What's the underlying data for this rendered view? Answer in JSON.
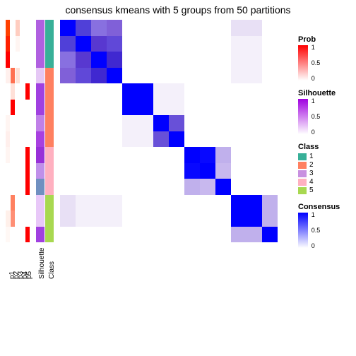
{
  "title": "consensus kmeans with 5 groups from 50 partitions",
  "rowH": 22.5,
  "ann_labels": [
    "p1",
    "p2",
    "p3",
    "p4",
    "p5",
    "Silhouette",
    "Class"
  ],
  "ann_cols": [
    {
      "w": 6,
      "colors": [
        "#ff4000",
        "#ff2000",
        "#ff0000",
        "#fff0ed",
        "#ffffff",
        "#ffffff",
        "#fff5f2",
        "#ffefec",
        "#fff5f2",
        "#ffffff",
        "#ffffff",
        "#ffffff",
        "#fff0ea",
        "#fff8f5"
      ]
    },
    {
      "w": 6,
      "colors": [
        "#ffffff",
        "#ffffff",
        "#ffffff",
        "#ff7050",
        "#ffe0d8",
        "#ff0000",
        "#ffffff",
        "#ffffff",
        "#ffffff",
        "#ffffff",
        "#ffffff",
        "#ff8060",
        "#ff8f75",
        "#ffffff"
      ]
    },
    {
      "w": 6,
      "colors": [
        "#ffcdc0",
        "#fff5f2",
        "#ffffff",
        "#ffe0d5",
        "#ffffff",
        "#ffffff",
        "#ffffff",
        "#ffffff",
        "#ffffff",
        "#ffffff",
        "#ffffff",
        "#ffffff",
        "#ffffff",
        "#ffffff"
      ]
    },
    {
      "w": 6,
      "colors": [
        "#ffffff",
        "#ffffff",
        "#ffffff",
        "#ffffff",
        "#ffffff",
        "#ffffff",
        "#ffffff",
        "#ffffff",
        "#ffffff",
        "#ffffff",
        "#ffffff",
        "#ffffff",
        "#ffffff",
        "#ffffff"
      ]
    },
    {
      "w": 6,
      "colors": [
        "#ffffff",
        "#ffffff",
        "#ffffff",
        "#ffffff",
        "#ff0000",
        "#ffffff",
        "#ffffff",
        "#ffffff",
        "#ff0000",
        "#ff0000",
        "#ff0000",
        "#ffffff",
        "#ffffff",
        "#ff0000"
      ]
    }
  ],
  "sil_col": {
    "w": 12,
    "colors": [
      "#b060e0",
      "#b060e0",
      "#b060e0",
      "#e5c8f5",
      "#a040e0",
      "#a040e0",
      "#c080e8",
      "#a840e0",
      "#9830d8",
      "#c090ea",
      "#7090c0",
      "#e8c8f8",
      "#e8c8f8",
      "#a040e0"
    ]
  },
  "class_col": {
    "w": 12,
    "colors": [
      "#38b098",
      "#38b098",
      "#38b098",
      "#ff8060",
      "#ff8060",
      "#ff8060",
      "#ff8060",
      "#ff8060",
      "#ffb0c0",
      "#ffb0c0",
      "#ffb0c0",
      "#a8d850",
      "#a8d850",
      "#a8d850"
    ]
  },
  "matrix_colors": [
    [
      "#0000ff",
      "#5040d8",
      "#8870e0",
      "#8060d8",
      "#ffffff",
      "#ffffff",
      "#ffffff",
      "#ffffff",
      "#ffffff",
      "#ffffff",
      "#ffffff",
      "#e8e0f5",
      "#e8e0f5",
      "#ffffff"
    ],
    [
      "#5040d8",
      "#0000ff",
      "#5838d0",
      "#6048d8",
      "#ffffff",
      "#ffffff",
      "#ffffff",
      "#ffffff",
      "#ffffff",
      "#ffffff",
      "#ffffff",
      "#f4f0fa",
      "#f4f0fa",
      "#ffffff"
    ],
    [
      "#8870e0",
      "#5838d0",
      "#0000ff",
      "#4028d0",
      "#ffffff",
      "#ffffff",
      "#ffffff",
      "#ffffff",
      "#ffffff",
      "#ffffff",
      "#ffffff",
      "#f4f0fa",
      "#f4f0fa",
      "#ffffff"
    ],
    [
      "#8060d8",
      "#6048d8",
      "#4028d0",
      "#0000ff",
      "#ffffff",
      "#ffffff",
      "#ffffff",
      "#ffffff",
      "#ffffff",
      "#ffffff",
      "#ffffff",
      "#f4f0fa",
      "#f4f0fa",
      "#ffffff"
    ],
    [
      "#ffffff",
      "#ffffff",
      "#ffffff",
      "#ffffff",
      "#0000ff",
      "#0000ff",
      "#f4f0fa",
      "#f4f0fa",
      "#ffffff",
      "#ffffff",
      "#ffffff",
      "#ffffff",
      "#ffffff",
      "#ffffff"
    ],
    [
      "#ffffff",
      "#ffffff",
      "#ffffff",
      "#ffffff",
      "#0000ff",
      "#0000ff",
      "#f4f0fa",
      "#f4f0fa",
      "#ffffff",
      "#ffffff",
      "#ffffff",
      "#ffffff",
      "#ffffff",
      "#ffffff"
    ],
    [
      "#ffffff",
      "#ffffff",
      "#ffffff",
      "#ffffff",
      "#f4f0fa",
      "#f4f0fa",
      "#0000ff",
      "#6850d8",
      "#ffffff",
      "#ffffff",
      "#ffffff",
      "#ffffff",
      "#ffffff",
      "#ffffff"
    ],
    [
      "#ffffff",
      "#ffffff",
      "#ffffff",
      "#ffffff",
      "#f4f0fa",
      "#f4f0fa",
      "#6850d8",
      "#0000ff",
      "#ffffff",
      "#ffffff",
      "#ffffff",
      "#ffffff",
      "#ffffff",
      "#ffffff"
    ],
    [
      "#ffffff",
      "#ffffff",
      "#ffffff",
      "#ffffff",
      "#ffffff",
      "#ffffff",
      "#ffffff",
      "#ffffff",
      "#0000ff",
      "#0808ff",
      "#c0b0ec",
      "#ffffff",
      "#ffffff",
      "#ffffff"
    ],
    [
      "#ffffff",
      "#ffffff",
      "#ffffff",
      "#ffffff",
      "#ffffff",
      "#ffffff",
      "#ffffff",
      "#ffffff",
      "#0808ff",
      "#0000ff",
      "#c8b8ee",
      "#ffffff",
      "#ffffff",
      "#ffffff"
    ],
    [
      "#ffffff",
      "#ffffff",
      "#ffffff",
      "#ffffff",
      "#ffffff",
      "#ffffff",
      "#ffffff",
      "#ffffff",
      "#c0b0ec",
      "#c8b8ee",
      "#0000ff",
      "#ffffff",
      "#ffffff",
      "#ffffff"
    ],
    [
      "#e8e0f5",
      "#f4f0fa",
      "#f4f0fa",
      "#f4f0fa",
      "#ffffff",
      "#ffffff",
      "#ffffff",
      "#ffffff",
      "#ffffff",
      "#ffffff",
      "#ffffff",
      "#0000ff",
      "#0000ff",
      "#c0b0ec"
    ],
    [
      "#e8e0f5",
      "#f4f0fa",
      "#f4f0fa",
      "#f4f0fa",
      "#ffffff",
      "#ffffff",
      "#ffffff",
      "#ffffff",
      "#ffffff",
      "#ffffff",
      "#ffffff",
      "#0000ff",
      "#0000ff",
      "#c0b0ec"
    ],
    [
      "#ffffff",
      "#ffffff",
      "#ffffff",
      "#ffffff",
      "#ffffff",
      "#ffffff",
      "#ffffff",
      "#ffffff",
      "#ffffff",
      "#ffffff",
      "#ffffff",
      "#c0b0ec",
      "#c0b0ec",
      "#0000ff"
    ]
  ],
  "matrix_cell_w": 22,
  "legends": {
    "prob": {
      "title": "Prob",
      "top": "#ff0000",
      "bottom": "#ffffff",
      "labels": [
        "1",
        "0.5",
        "0"
      ]
    },
    "sil": {
      "title": "Silhouette",
      "top": "#a000e0",
      "bottom": "#ffffff",
      "labels": [
        "1",
        "0.5",
        "0"
      ]
    },
    "class": {
      "title": "Class",
      "items": [
        {
          "c": "#38b098",
          "l": "1"
        },
        {
          "c": "#ff8060",
          "l": "2"
        },
        {
          "c": "#c890e0",
          "l": "3"
        },
        {
          "c": "#ffb0c0",
          "l": "4"
        },
        {
          "c": "#a8d850",
          "l": "5"
        }
      ]
    },
    "cons": {
      "title": "Consensus",
      "top": "#0000ff",
      "bottom": "#ffffff",
      "labels": [
        "1",
        "0.5",
        "0"
      ]
    }
  }
}
